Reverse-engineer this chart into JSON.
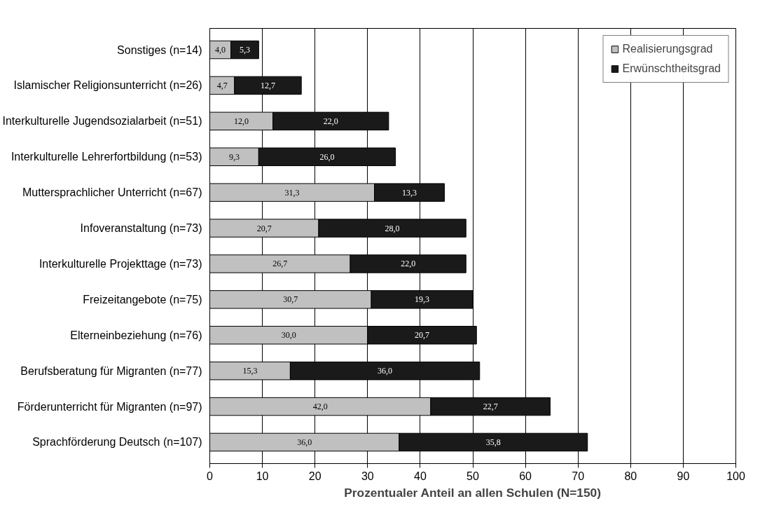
{
  "chart_data": {
    "type": "bar",
    "orientation": "horizontal",
    "stacked": true,
    "categories": [
      "Sonstiges (n=14)",
      "Islamischer Religionsunterricht (n=26)",
      "Interkulturelle Jugendsozialarbeit (n=51)",
      "Interkulturelle Lehrerfortbildung (n=53)",
      "Muttersprachlicher Unterricht (n=67)",
      "Infoveranstaltung (n=73)",
      "Interkulturelle Projekttage (n=73)",
      "Freizeitangebote (n=75)",
      "Elterneinbeziehung (n=76)",
      "Berufsberatung für Migranten (n=77)",
      "Förderunterricht für Migranten (n=97)",
      "Sprachförderung Deutsch (n=107)"
    ],
    "series": [
      {
        "name": "Realisierungsgrad",
        "color": "#c0c0c0",
        "values": [
          4.0,
          4.7,
          12.0,
          9.3,
          31.3,
          20.7,
          26.7,
          30.7,
          30.0,
          15.3,
          42.0,
          36.0
        ],
        "value_labels": [
          "4,0",
          "4,7",
          "12,0",
          "9,3",
          "31,3",
          "20,7",
          "26,7",
          "30,7",
          "30,0",
          "15,3",
          "42,0",
          "36,0"
        ]
      },
      {
        "name": "Erwünschtheitsgrad",
        "color": "#1a1a1a",
        "values": [
          5.3,
          12.7,
          22.0,
          26.0,
          13.3,
          28.0,
          22.0,
          19.3,
          20.7,
          36.0,
          22.7,
          35.8
        ],
        "value_labels": [
          "5,3",
          "12,7",
          "22,0",
          "26,0",
          "13,3",
          "28,0",
          "22,0",
          "19,3",
          "20,7",
          "36,0",
          "22,7",
          "35,8"
        ]
      }
    ],
    "xlabel": "Prozentualer Anteil an allen Schulen (N=150)",
    "xlim": [
      0,
      100
    ],
    "xticks": [
      0,
      10,
      20,
      30,
      40,
      50,
      60,
      70,
      80,
      90,
      100
    ],
    "grid": "x",
    "legend": "top right"
  }
}
